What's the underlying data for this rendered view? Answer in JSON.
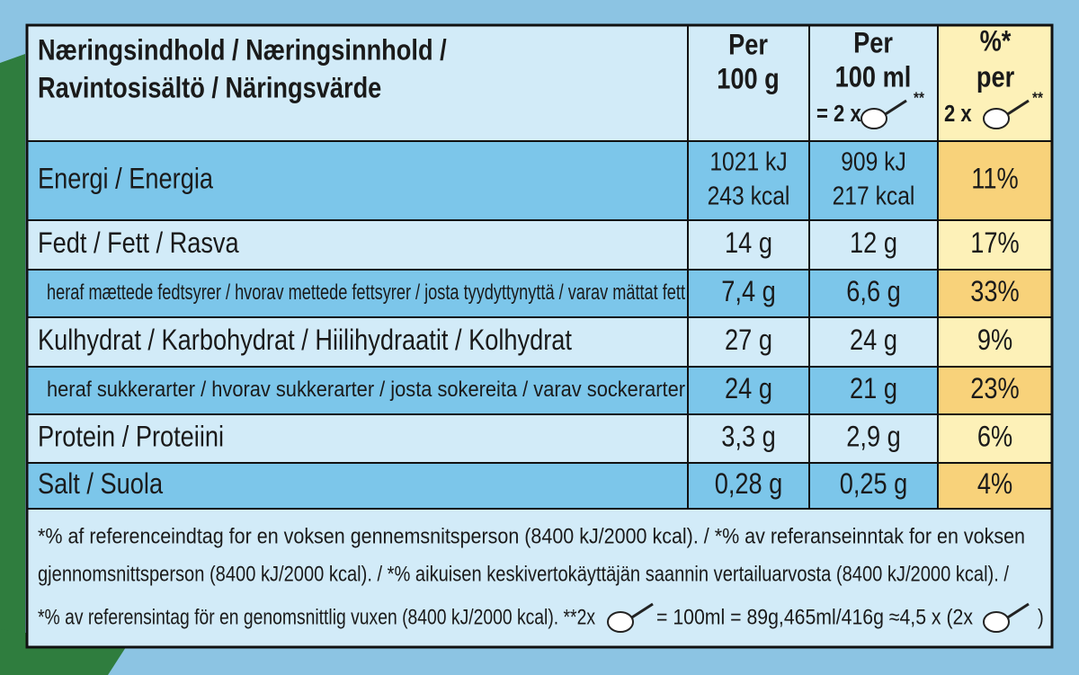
{
  "header": {
    "title": [
      "Næringsindhold / Næringsinnhold /",
      "Ravintosisältö / Näringsvärde"
    ],
    "col_100g": [
      "Per",
      "100 g"
    ],
    "col_100ml": [
      "Per",
      "100 ml",
      "= 2 x",
      "**"
    ],
    "col_pct": [
      "%*",
      "per",
      "2 x",
      "**"
    ]
  },
  "rows": [
    {
      "label": "Energi / Energia",
      "per_100g": [
        "1021 kJ",
        "243 kcal"
      ],
      "per_100ml": [
        "909 kJ",
        "217 kcal"
      ],
      "pct": "11%"
    },
    {
      "label": "Fedt / Fett / Rasva",
      "per_100g": [
        "14 g"
      ],
      "per_100ml": [
        "12 g"
      ],
      "pct": "17%"
    },
    {
      "label": "heraf mættede fedtsyrer / hvorav mettede fettsyrer / josta tyydyttynyttä / varav mättat fett",
      "per_100g": [
        "7,4 g"
      ],
      "per_100ml": [
        "6,6 g"
      ],
      "pct": "33%"
    },
    {
      "label": "Kulhydrat / Karbohydrat / Hiilihydraatit / Kolhydrat",
      "per_100g": [
        "27 g"
      ],
      "per_100ml": [
        "24 g"
      ],
      "pct": "9%"
    },
    {
      "label": "heraf sukkerarter / hvorav sukkerarter / josta sokereita / varav sockerarter",
      "per_100g": [
        "24 g"
      ],
      "per_100ml": [
        "21 g"
      ],
      "pct": "23%"
    },
    {
      "label": "Protein / Proteiini",
      "per_100g": [
        "3,3 g"
      ],
      "per_100ml": [
        "2,9 g"
      ],
      "pct": "6%"
    },
    {
      "label": "Salt / Suola",
      "per_100g": [
        "0,28 g"
      ],
      "per_100ml": [
        "0,25 g"
      ],
      "pct": "4%"
    }
  ],
  "footnote": [
    "*% af referenceindtag for en voksen gennemsnitsperson (8400 kJ/2000 kcal). / *% av referanseinntak for en voksen",
    "gjennomsnittsperson (8400 kJ/2000 kcal). / *% aikuisen keskivertokäyttäjän saannin vertailuarvosta (8400 kJ/2000 kcal). /",
    "*% av referensintag för en genomsnittlig vuxen (8400 kJ/2000 kcal).  **2x",
    "= 100ml = 89g,465ml/416g ≈4,5 x (2x",
    ")"
  ]
}
